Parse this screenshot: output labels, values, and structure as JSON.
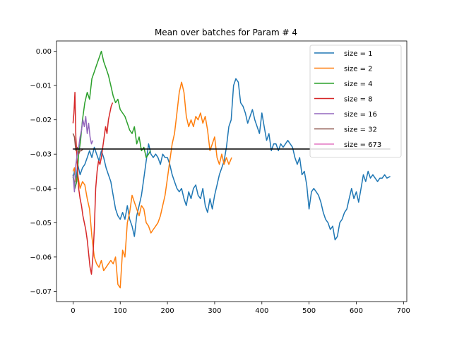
{
  "chart_data": {
    "type": "line",
    "title": "Mean over batches for Param # 4",
    "xlabel": "",
    "ylabel": "",
    "xlim": [
      -35,
      707
    ],
    "ylim": [
      -0.073,
      0.003
    ],
    "xticks": [
      0,
      100,
      200,
      300,
      400,
      500,
      600,
      700
    ],
    "yticks": [
      0.0,
      -0.01,
      -0.02,
      -0.03,
      -0.04,
      -0.05,
      -0.06,
      -0.07
    ],
    "ytick_labels": [
      "0.00",
      "−0.01",
      "−0.02",
      "−0.03",
      "−0.04",
      "−0.05",
      "−0.06",
      "−0.07"
    ],
    "grid": false,
    "legend_position": "top-right",
    "reference_line": {
      "x_start": 0,
      "x_end": 672,
      "y": -0.0285,
      "color": "#000000"
    },
    "series": [
      {
        "name": "size = 1",
        "color": "#1f77b4",
        "x": [
          0,
          3,
          6,
          10,
          15,
          20,
          25,
          30,
          35,
          40,
          45,
          50,
          55,
          60,
          65,
          70,
          75,
          80,
          85,
          90,
          95,
          100,
          105,
          110,
          115,
          120,
          125,
          130,
          135,
          140,
          145,
          150,
          155,
          160,
          165,
          170,
          175,
          180,
          185,
          190,
          195,
          200,
          205,
          210,
          215,
          220,
          225,
          230,
          235,
          240,
          245,
          250,
          255,
          260,
          265,
          270,
          275,
          280,
          285,
          290,
          295,
          300,
          305,
          310,
          315,
          320,
          325,
          330,
          335,
          340,
          345,
          350,
          355,
          360,
          365,
          370,
          375,
          380,
          385,
          390,
          395,
          400,
          405,
          410,
          415,
          420,
          425,
          430,
          435,
          440,
          445,
          450,
          455,
          460,
          465,
          470,
          475,
          480,
          485,
          490,
          495,
          500,
          505,
          510,
          515,
          520,
          525,
          530,
          535,
          540,
          545,
          550,
          555,
          560,
          565,
          570,
          575,
          580,
          585,
          590,
          595,
          600,
          605,
          610,
          615,
          620,
          625,
          630,
          635,
          640,
          645,
          650,
          655,
          660,
          665,
          672
        ],
        "y": [
          -0.037,
          -0.035,
          -0.038,
          -0.033,
          -0.036,
          -0.034,
          -0.033,
          -0.031,
          -0.029,
          -0.031,
          -0.028,
          -0.03,
          -0.032,
          -0.029,
          -0.031,
          -0.034,
          -0.036,
          -0.038,
          -0.042,
          -0.046,
          -0.048,
          -0.049,
          -0.047,
          -0.049,
          -0.045,
          -0.049,
          -0.051,
          -0.054,
          -0.048,
          -0.045,
          -0.042,
          -0.037,
          -0.032,
          -0.027,
          -0.03,
          -0.031,
          -0.03,
          -0.031,
          -0.033,
          -0.03,
          -0.031,
          -0.031,
          -0.033,
          -0.036,
          -0.038,
          -0.04,
          -0.041,
          -0.04,
          -0.043,
          -0.045,
          -0.041,
          -0.043,
          -0.04,
          -0.039,
          -0.042,
          -0.043,
          -0.04,
          -0.045,
          -0.047,
          -0.043,
          -0.046,
          -0.042,
          -0.039,
          -0.036,
          -0.034,
          -0.032,
          -0.028,
          -0.022,
          -0.02,
          -0.01,
          -0.008,
          -0.009,
          -0.015,
          -0.016,
          -0.018,
          -0.021,
          -0.019,
          -0.017,
          -0.02,
          -0.022,
          -0.024,
          -0.018,
          -0.022,
          -0.026,
          -0.024,
          -0.029,
          -0.027,
          -0.027,
          -0.029,
          -0.027,
          -0.028,
          -0.027,
          -0.026,
          -0.027,
          -0.028,
          -0.031,
          -0.033,
          -0.031,
          -0.036,
          -0.035,
          -0.039,
          -0.046,
          -0.041,
          -0.04,
          -0.041,
          -0.042,
          -0.044,
          -0.047,
          -0.049,
          -0.05,
          -0.052,
          -0.051,
          -0.055,
          -0.054,
          -0.05,
          -0.049,
          -0.047,
          -0.046,
          -0.043,
          -0.04,
          -0.043,
          -0.041,
          -0.044,
          -0.04,
          -0.036,
          -0.038,
          -0.035,
          -0.037,
          -0.036,
          -0.037,
          -0.038,
          -0.037,
          -0.037,
          -0.036,
          -0.037,
          -0.0365
        ]
      },
      {
        "name": "size = 2",
        "color": "#ff7f0e",
        "x": [
          0,
          3,
          6,
          10,
          15,
          20,
          25,
          30,
          35,
          40,
          45,
          50,
          55,
          60,
          65,
          70,
          75,
          80,
          85,
          90,
          95,
          100,
          105,
          110,
          115,
          120,
          125,
          130,
          135,
          140,
          145,
          150,
          155,
          160,
          165,
          170,
          175,
          180,
          185,
          190,
          195,
          200,
          205,
          210,
          215,
          220,
          225,
          230,
          235,
          240,
          245,
          250,
          255,
          260,
          265,
          270,
          275,
          280,
          285,
          290,
          295,
          300,
          305,
          310,
          315,
          320,
          325,
          330,
          336
        ],
        "y": [
          -0.035,
          -0.034,
          -0.038,
          -0.036,
          -0.04,
          -0.038,
          -0.039,
          -0.043,
          -0.046,
          -0.054,
          -0.06,
          -0.062,
          -0.063,
          -0.061,
          -0.064,
          -0.063,
          -0.062,
          -0.061,
          -0.062,
          -0.06,
          -0.068,
          -0.069,
          -0.058,
          -0.06,
          -0.05,
          -0.047,
          -0.042,
          -0.044,
          -0.046,
          -0.048,
          -0.045,
          -0.046,
          -0.05,
          -0.051,
          -0.053,
          -0.052,
          -0.051,
          -0.05,
          -0.048,
          -0.045,
          -0.042,
          -0.037,
          -0.032,
          -0.027,
          -0.024,
          -0.018,
          -0.012,
          -0.009,
          -0.012,
          -0.019,
          -0.022,
          -0.02,
          -0.022,
          -0.019,
          -0.02,
          -0.018,
          -0.021,
          -0.019,
          -0.023,
          -0.029,
          -0.027,
          -0.025,
          -0.031,
          -0.033,
          -0.03,
          -0.033,
          -0.031,
          -0.033,
          -0.031
        ]
      },
      {
        "name": "size = 4",
        "color": "#2ca02c",
        "x": [
          0,
          4,
          8,
          12,
          16,
          20,
          25,
          30,
          35,
          40,
          45,
          50,
          55,
          60,
          65,
          70,
          75,
          80,
          85,
          90,
          95,
          100,
          105,
          110,
          115,
          120,
          125,
          130,
          135,
          140,
          145,
          150,
          155,
          160,
          164
        ],
        "y": [
          -0.036,
          -0.04,
          -0.038,
          -0.03,
          -0.026,
          -0.02,
          -0.015,
          -0.012,
          -0.014,
          -0.008,
          -0.006,
          -0.004,
          -0.002,
          0.0,
          -0.003,
          -0.005,
          -0.007,
          -0.01,
          -0.013,
          -0.015,
          -0.014,
          -0.017,
          -0.018,
          -0.019,
          -0.021,
          -0.023,
          -0.024,
          -0.022,
          -0.027,
          -0.025,
          -0.029,
          -0.028,
          -0.031,
          -0.03,
          -0.029
        ]
      },
      {
        "name": "size = 8",
        "color": "#d62728",
        "x": [
          0,
          2,
          4,
          6,
          8,
          10,
          12,
          15,
          18,
          21,
          24,
          27,
          30,
          33,
          36,
          39,
          42,
          45,
          48,
          51,
          54,
          57,
          60,
          63,
          66,
          69,
          72,
          75,
          78,
          81,
          84
        ],
        "y": [
          -0.021,
          -0.018,
          -0.012,
          -0.025,
          -0.03,
          -0.036,
          -0.04,
          -0.043,
          -0.045,
          -0.048,
          -0.05,
          -0.052,
          -0.055,
          -0.059,
          -0.063,
          -0.065,
          -0.06,
          -0.052,
          -0.04,
          -0.035,
          -0.032,
          -0.033,
          -0.031,
          -0.028,
          -0.025,
          -0.022,
          -0.024,
          -0.02,
          -0.018,
          -0.016,
          -0.015
        ]
      },
      {
        "name": "size = 16",
        "color": "#9467bd",
        "x": [
          0,
          3,
          6,
          9,
          12,
          15,
          18,
          21,
          24,
          27,
          30,
          33,
          36,
          39,
          42
        ],
        "y": [
          -0.036,
          -0.041,
          -0.033,
          -0.03,
          -0.028,
          -0.025,
          -0.023,
          -0.02,
          -0.022,
          -0.019,
          -0.024,
          -0.021,
          -0.025,
          -0.027,
          -0.026
        ]
      },
      {
        "name": "size = 32",
        "color": "#8c564b",
        "x": [
          0,
          3,
          6,
          9,
          12,
          15,
          18,
          21
        ],
        "y": [
          -0.024,
          -0.025,
          -0.029,
          -0.028,
          -0.03,
          -0.029,
          -0.029,
          -0.0285
        ]
      },
      {
        "name": "size = 673",
        "color": "#e377c2",
        "x": [
          0
        ],
        "y": [
          -0.0285
        ]
      }
    ]
  }
}
